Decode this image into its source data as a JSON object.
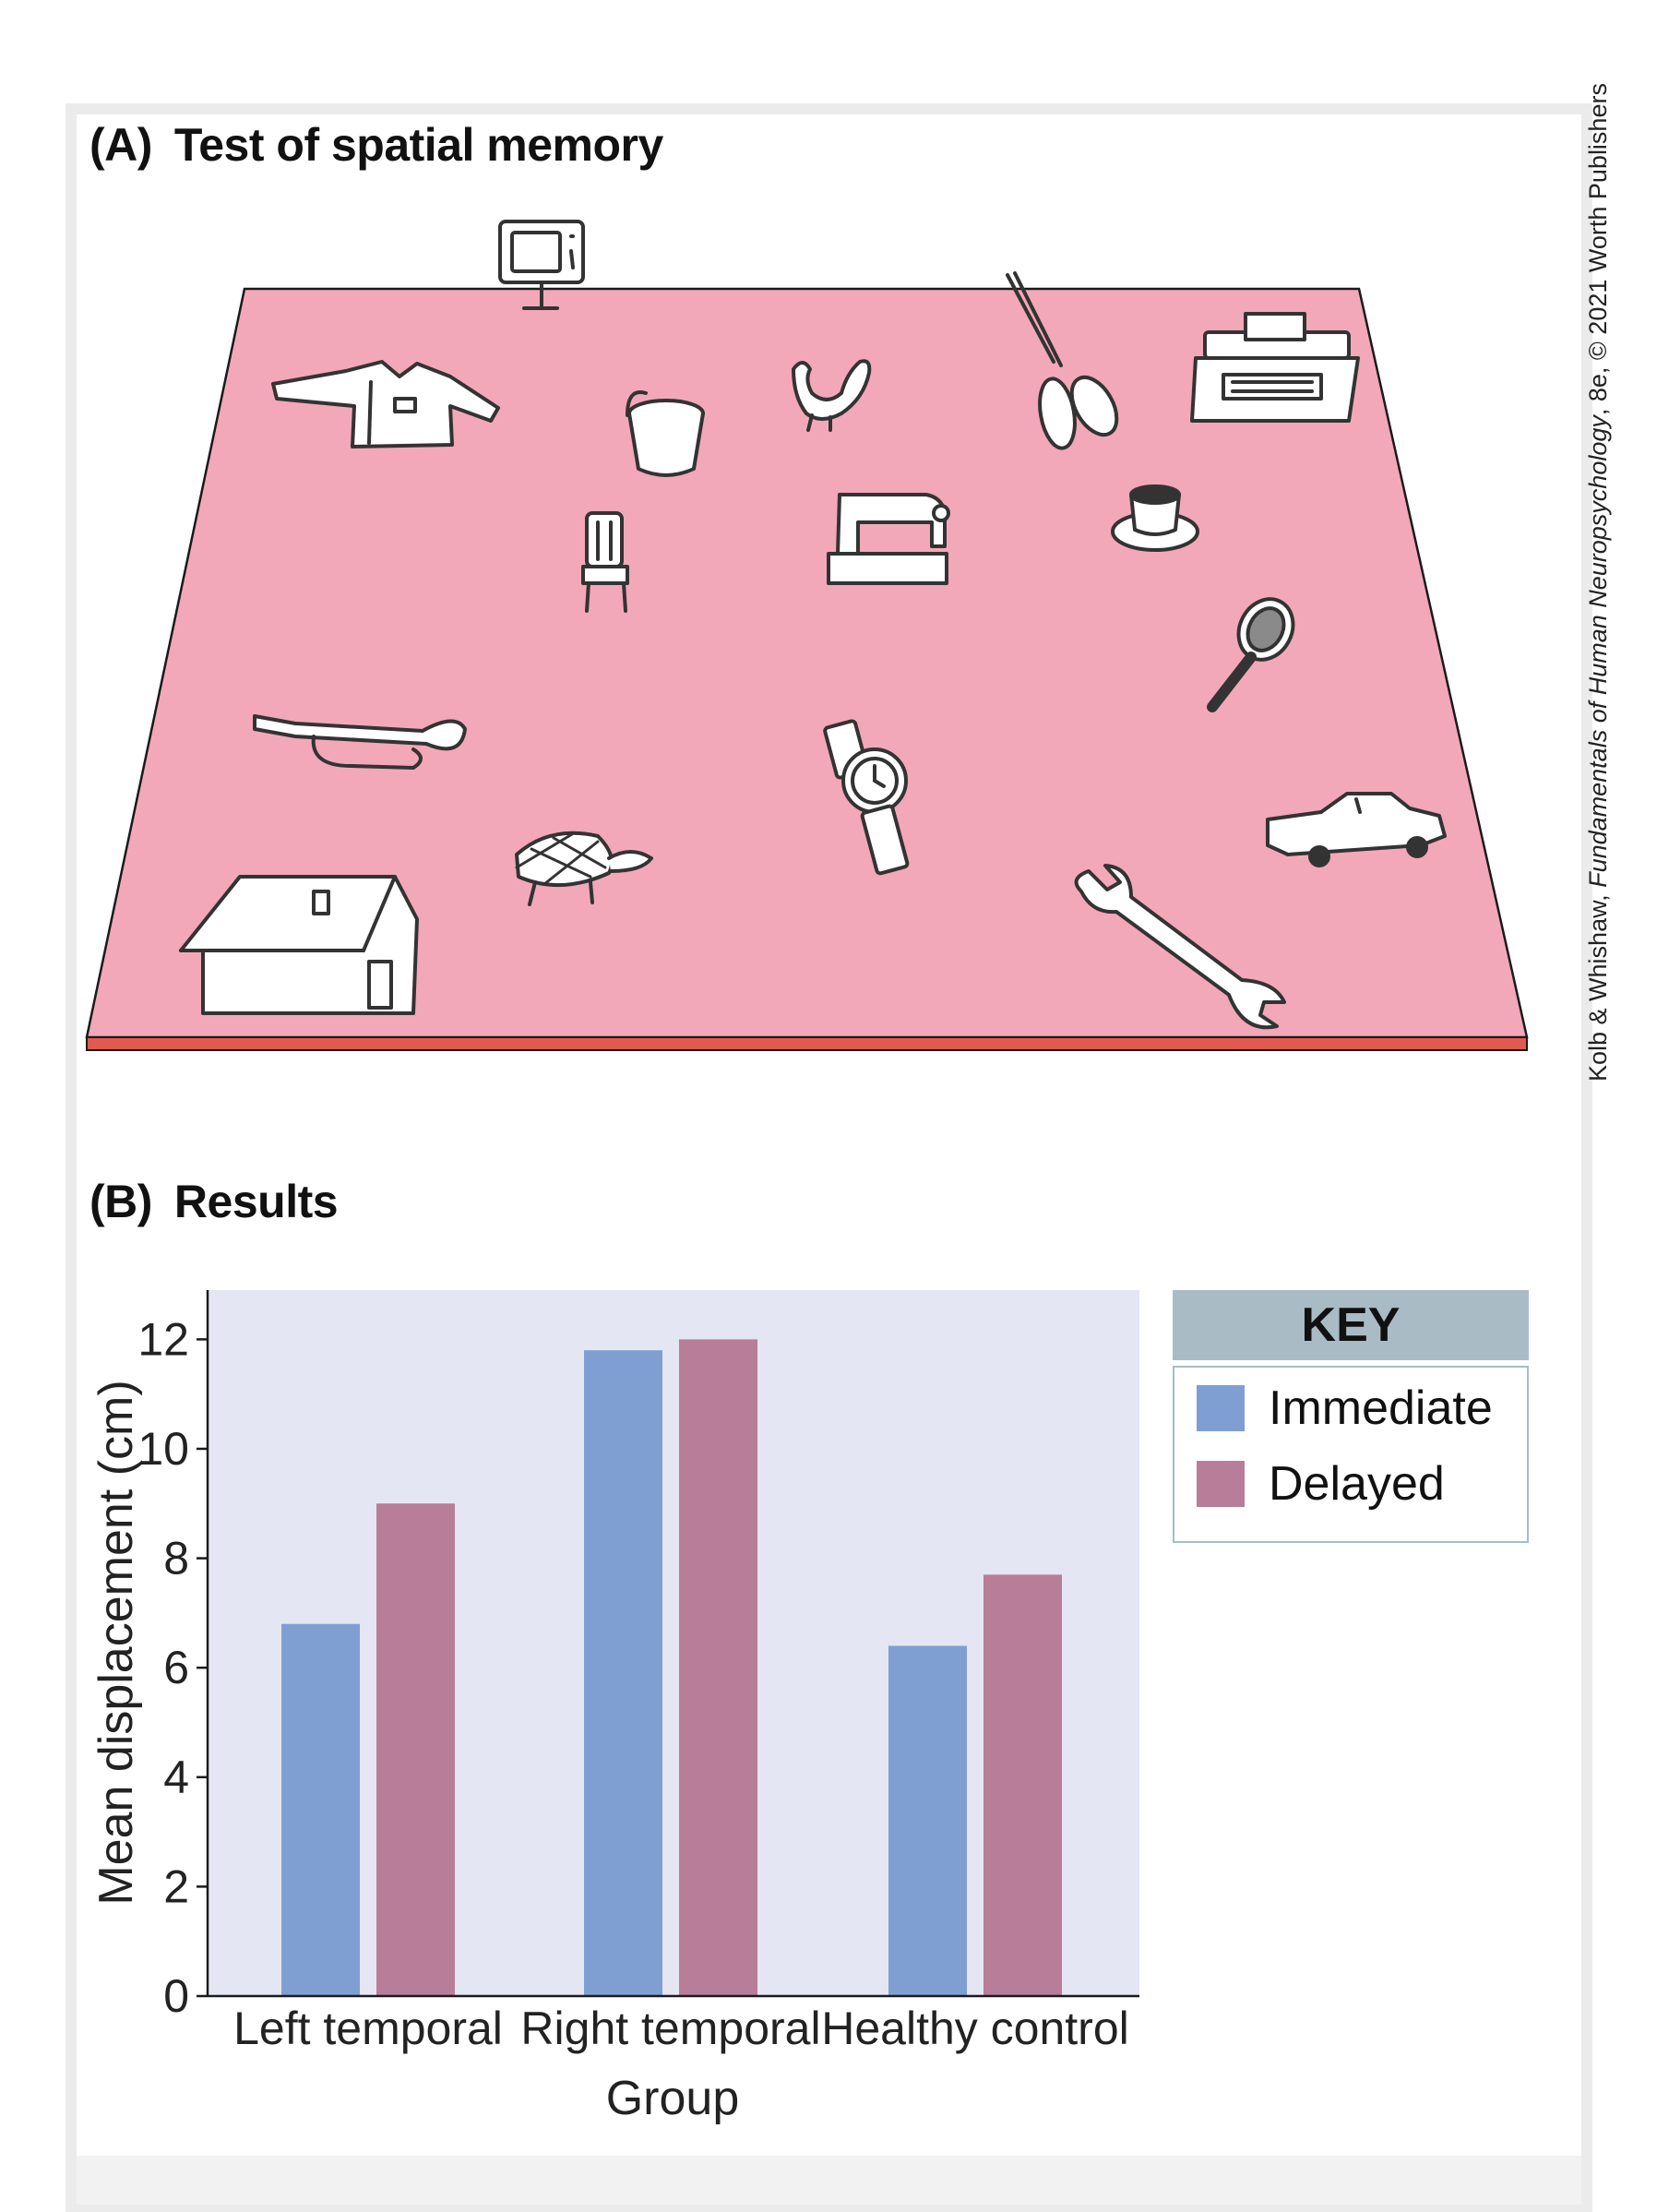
{
  "panel_a": {
    "letter": "(A)",
    "title": "Test of spatial memory"
  },
  "panel_b": {
    "letter": "(B)",
    "title": "Results"
  },
  "credit": {
    "authors": "Kolb & Whishaw, ",
    "book": "Fundamentals of Human Neuropsychology",
    "edition": ", 8e, © 2021 Worth Publishers"
  },
  "scene_objects": [
    "television",
    "shirt",
    "bucket",
    "rooster",
    "scissors",
    "typewriter",
    "chair",
    "sewing machine",
    "coffee cup",
    "tennis racket",
    "trumpet",
    "watch",
    "car",
    "turtle",
    "house",
    "wrench"
  ],
  "colors": {
    "table_top": "#f2a8b8",
    "table_edge": "#e05a4e",
    "plot_bg": "#e4e6f4",
    "immediate": "#7f9fd2",
    "delayed": "#b87d98",
    "key_header": "#a9bcc6"
  },
  "chart_data": {
    "type": "bar",
    "title": "",
    "xlabel": "Group",
    "ylabel": "Mean displacement (cm)",
    "categories": [
      "Left temporal",
      "Right temporal",
      "Healthy control"
    ],
    "series": [
      {
        "name": "Immediate",
        "values": [
          6.8,
          11.8,
          6.4
        ]
      },
      {
        "name": "Delayed",
        "values": [
          9.0,
          12.0,
          7.7
        ]
      }
    ],
    "ylim": [
      0,
      12.9
    ],
    "yticks": [
      0,
      2,
      4,
      6,
      8,
      10,
      12
    ],
    "legend": {
      "title": "KEY",
      "placement": "right"
    },
    "grid": false
  }
}
